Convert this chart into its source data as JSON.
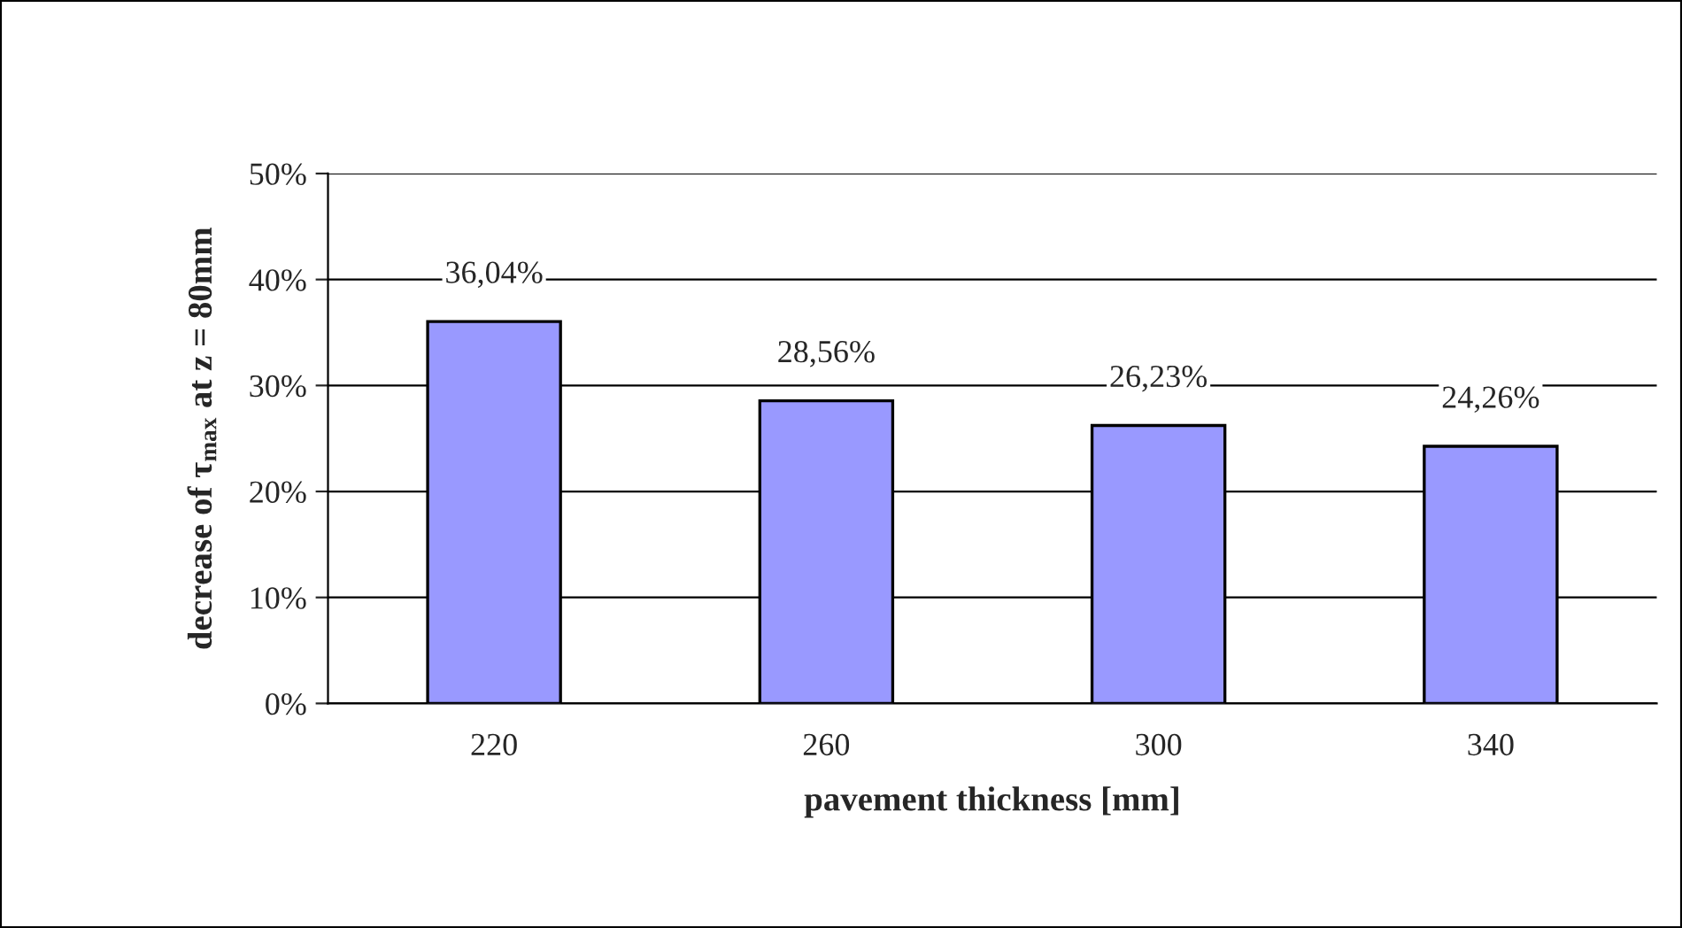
{
  "chart_data": {
    "type": "bar",
    "xlabel": "pavement thickness [mm]",
    "ylabel": "decrease of τ$_{max}$ at z = 80mm",
    "categories": [
      "220",
      "260",
      "300",
      "340"
    ],
    "values": [
      36.04,
      28.56,
      26.23,
      24.26
    ],
    "value_labels": [
      "36,04%",
      "28,56%",
      "26,23%",
      "24,26%"
    ],
    "color": "#9999ff",
    "ylim": [
      0,
      50
    ],
    "yticks": [
      {
        "value": 0,
        "label": "0%"
      },
      {
        "value": 10,
        "label": "10%"
      },
      {
        "value": 20,
        "label": "20%"
      },
      {
        "value": 30,
        "label": "30%"
      },
      {
        "value": 40,
        "label": "40%"
      },
      {
        "value": 50,
        "label": "50%"
      }
    ],
    "grid": "y",
    "legend": false
  }
}
